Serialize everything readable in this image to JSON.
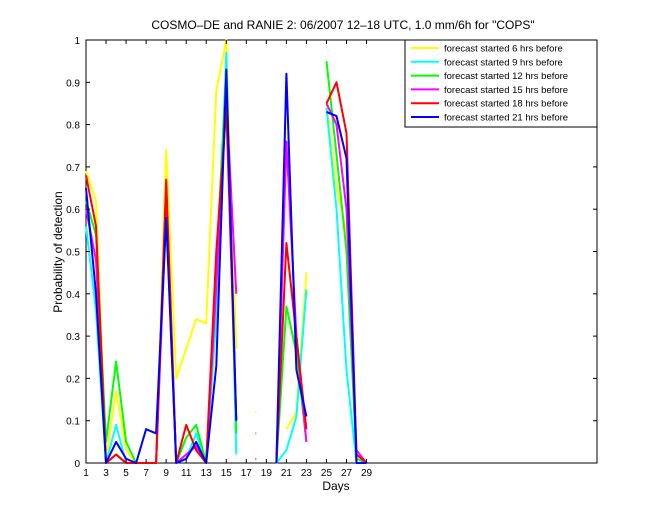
{
  "chart_data": {
    "type": "line",
    "title": "COSMO–DE and RANIE 2: 06/2007 12–18 UTC, 1.0 mm/6h for \"COPS\"",
    "xlabel": "Days",
    "ylabel": "Probability of detection",
    "xlim": [
      1,
      52
    ],
    "ylim": [
      0,
      1
    ],
    "x_ticks": [
      1,
      3,
      5,
      7,
      9,
      11,
      13,
      15,
      17,
      19,
      21,
      23,
      25,
      27,
      29
    ],
    "y_ticks": [
      0,
      0.1,
      0.2,
      0.3,
      0.4,
      0.5,
      0.6,
      0.7,
      0.8,
      0.9,
      1
    ],
    "y_tick_labels": [
      "0",
      "0.1",
      "0.2",
      "0.3",
      "0.4",
      "0.5",
      "0.6",
      "0.7",
      "0.8",
      "0.9",
      "1"
    ],
    "legend_position": "top-right",
    "grid": false,
    "series": [
      {
        "name": "forecast started 6 hrs before",
        "color": "#ffff00",
        "values": [
          0.69,
          0.62,
          0.01,
          0.17,
          0.03,
          0.0,
          0.0,
          0.0,
          0.74,
          0.2,
          0.27,
          0.34,
          0.33,
          0.88,
          1.0,
          0.27,
          null,
          0.12,
          null,
          null,
          0.08,
          0.12,
          0.45,
          null,
          0.85,
          0.65,
          0.55,
          0.02,
          0.0
        ]
      },
      {
        "name": "forecast started 9 hrs before",
        "color": "#00ffff",
        "values": [
          0.56,
          0.36,
          0.0,
          0.09,
          0.0,
          0.0,
          0.0,
          0.0,
          0.63,
          0.0,
          0.01,
          0.07,
          0.0,
          0.35,
          0.97,
          0.02,
          null,
          null,
          null,
          0.0,
          0.03,
          0.11,
          0.41,
          null,
          0.84,
          0.6,
          0.22,
          0.0,
          0.0
        ]
      },
      {
        "name": "forecast started 12 hrs before",
        "color": "#00ff00",
        "values": [
          0.62,
          0.54,
          0.05,
          0.24,
          0.05,
          0.0,
          0.0,
          0.0,
          0.65,
          0.0,
          0.06,
          0.09,
          0.0,
          0.47,
          0.93,
          0.07,
          null,
          0.07,
          null,
          0.0,
          0.37,
          0.26,
          0.05,
          null,
          0.95,
          0.73,
          0.5,
          0.01,
          0.0
        ]
      },
      {
        "name": "forecast started 15 hrs before",
        "color": "#ff00ff",
        "values": [
          0.6,
          0.48,
          0.0,
          0.02,
          0.0,
          0.0,
          0.0,
          0.0,
          0.6,
          0.0,
          0.02,
          0.04,
          0.0,
          0.42,
          0.86,
          0.4,
          null,
          0.01,
          null,
          0.0,
          0.76,
          0.3,
          0.05,
          null,
          0.85,
          0.8,
          0.6,
          0.03,
          0.0
        ]
      },
      {
        "name": "forecast started 18 hrs before",
        "color": "#ff0000",
        "values": [
          0.68,
          0.56,
          0.0,
          0.02,
          0.0,
          0.0,
          0.0,
          0.0,
          0.67,
          0.0,
          0.09,
          0.03,
          0.0,
          0.5,
          0.84,
          0.1,
          null,
          null,
          null,
          0.0,
          0.52,
          0.3,
          0.08,
          null,
          0.85,
          0.9,
          0.78,
          0.02,
          0.0
        ]
      },
      {
        "name": "forecast started 21 hrs before",
        "color": "#0000ff",
        "values": [
          0.65,
          0.4,
          0.0,
          0.05,
          0.01,
          0.0,
          0.08,
          0.07,
          0.58,
          0.0,
          0.01,
          0.05,
          0.0,
          0.23,
          0.93,
          0.1,
          null,
          null,
          null,
          0.0,
          0.92,
          0.22,
          0.11,
          null,
          0.83,
          0.82,
          0.72,
          0.0,
          0.0
        ]
      }
    ]
  }
}
